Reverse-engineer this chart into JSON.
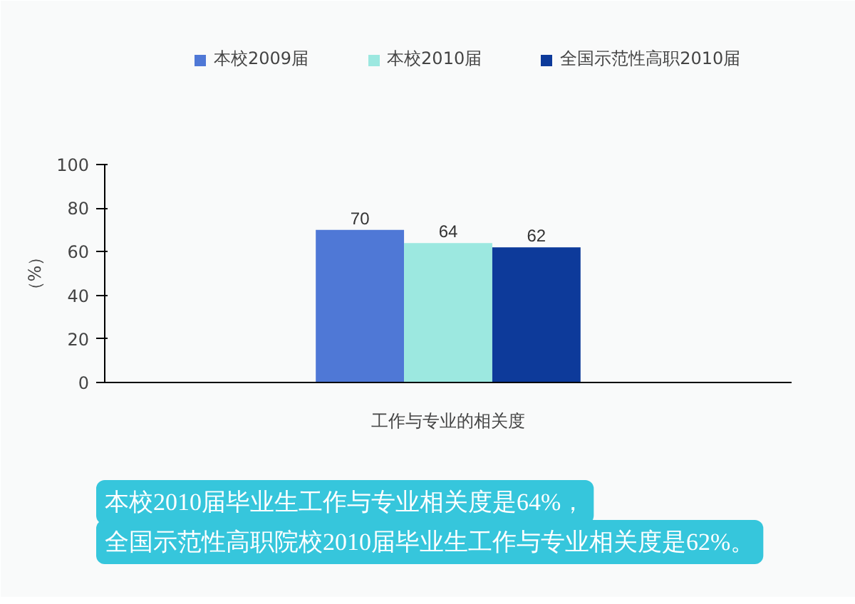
{
  "chart_data": {
    "type": "bar",
    "categories": [
      "工作与专业的相关度"
    ],
    "ylabel": "（%）",
    "ylim": [
      0,
      100
    ],
    "yticks": [
      0,
      20,
      40,
      60,
      80,
      100
    ],
    "series": [
      {
        "name": "本校2009届",
        "color": "#4f78d6",
        "values": [
          70
        ]
      },
      {
        "name": "本校2010届",
        "color": "#9ce8e0",
        "values": [
          64
        ]
      },
      {
        "name": "全国示范性高职2010届",
        "color": "#0d3a9a",
        "values": [
          62
        ]
      }
    ],
    "data_labels": true,
    "legend": "top",
    "grid": false,
    "annotations": [
      "本校2010届毕业生工作与专业相关度是64%，",
      "全国示范性高职院校2010届毕业生工作与专业相关度是62%。"
    ]
  }
}
